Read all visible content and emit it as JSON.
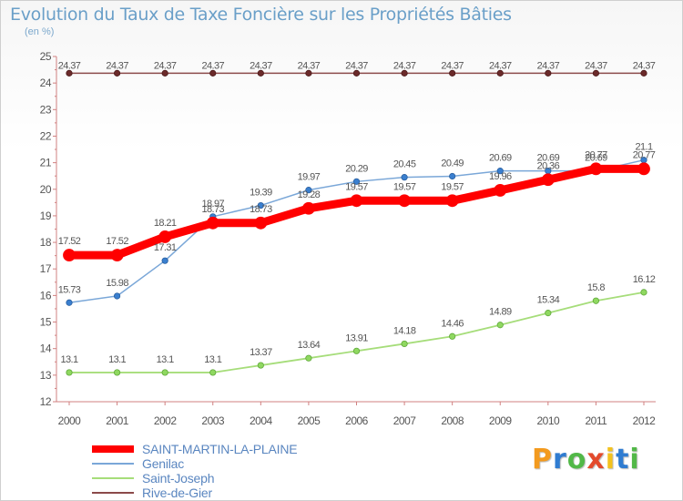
{
  "title": "Evolution du Taux de Taxe Foncière sur les Propriétés Bâties",
  "unit": "(en %)",
  "logo": {
    "letters": [
      "P",
      "r",
      "o",
      "x",
      "i",
      "t",
      "i"
    ],
    "colors": [
      "#f39a1e",
      "#2f7cd1",
      "#52b848",
      "#e34a2c",
      "#f3c21e",
      "#2f7cd1",
      "#52b848"
    ]
  },
  "chart_data": {
    "type": "line",
    "title": "Evolution du Taux de Taxe Foncière sur les Propriétés Bâties",
    "ylabel": "(en %)",
    "xlabel": "",
    "x": [
      "2000",
      "2001",
      "2002",
      "2003",
      "2004",
      "2005",
      "2006",
      "2007",
      "2008",
      "2009",
      "2010",
      "2011",
      "2012"
    ],
    "ylim": [
      12,
      25
    ],
    "yticks": [
      "12",
      "13",
      "14",
      "15",
      "16",
      "17",
      "18",
      "19",
      "20",
      "21",
      "22",
      "23",
      "24",
      "25"
    ],
    "grid": false,
    "legend_position": "bottom-left",
    "series": [
      {
        "name": "SAINT-MARTIN-LA-PLAINE",
        "color": "#ff0000",
        "values": [
          17.52,
          17.52,
          18.21,
          18.73,
          18.73,
          19.28,
          19.57,
          19.57,
          19.57,
          19.96,
          20.36,
          20.77,
          20.77
        ],
        "labels": [
          "17.52",
          "17.52",
          "18.21",
          "18.73",
          "18.73",
          "19.28",
          "19.57",
          "19.57",
          "19.57",
          "19.96",
          "20.36",
          "20.77",
          "20.77"
        ]
      },
      {
        "name": "Genilac",
        "color": "#7aa7d8",
        "values": [
          15.73,
          15.98,
          17.31,
          18.97,
          19.39,
          19.97,
          20.29,
          20.45,
          20.49,
          20.69,
          20.69,
          20.69,
          21.1
        ],
        "labels": [
          "15.73",
          "15.98",
          "17.31",
          "18.97",
          "19.39",
          "19.97",
          "20.29",
          "20.45",
          "20.49",
          "20.69",
          "20.69",
          "20.69",
          "21.1"
        ]
      },
      {
        "name": "Saint-Joseph",
        "color": "#a6dd7a",
        "values": [
          13.1,
          13.1,
          13.1,
          13.1,
          13.37,
          13.64,
          13.91,
          14.18,
          14.46,
          14.89,
          15.34,
          15.8,
          16.12
        ],
        "labels": [
          "13.1",
          "13.1",
          "13.1",
          "13.1",
          "13.37",
          "13.64",
          "13.91",
          "14.18",
          "14.46",
          "14.89",
          "15.34",
          "15.8",
          "16.12"
        ]
      },
      {
        "name": "Rive-de-Gier",
        "color": "#8b4a4a",
        "values": [
          24.37,
          24.37,
          24.37,
          24.37,
          24.37,
          24.37,
          24.37,
          24.37,
          24.37,
          24.37,
          24.37,
          24.37,
          24.37
        ],
        "labels": [
          "24.37",
          "24.37",
          "24.37",
          "24.37",
          "24.37",
          "24.37",
          "24.37",
          "24.37",
          "24.37",
          "24.37",
          "24.37",
          "24.37",
          "24.37"
        ]
      }
    ]
  }
}
